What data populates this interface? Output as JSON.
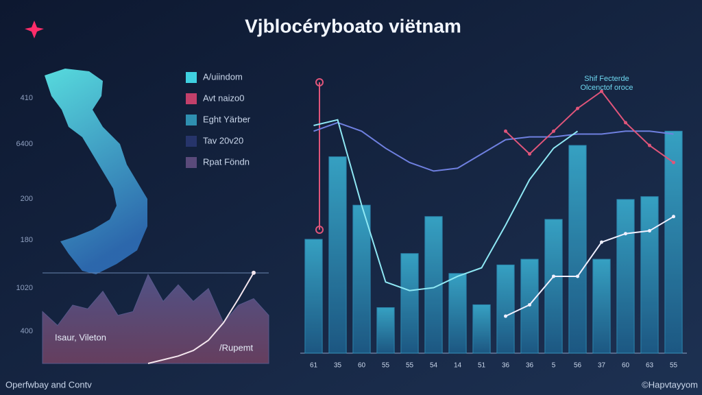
{
  "header": {
    "title": "Vjblocéryboato viëtnam"
  },
  "legend": [
    {
      "label": "A/uiindom",
      "color": "#3fd0e0"
    },
    {
      "label": "Avt naizo0",
      "color": "#c2406a"
    },
    {
      "label": "Eght Yärber",
      "color": "#2f8fb0"
    },
    {
      "label": "Tav 20v20",
      "color": "#26346a"
    },
    {
      "label": "Rpat Föndn",
      "color": "#5a4a7a"
    }
  ],
  "side_axis": [
    "410",
    "6400",
    "200",
    "180",
    "1020",
    "400"
  ],
  "footer": {
    "left": "Operfwbay and Contv",
    "right": "©Hapvtayyom"
  },
  "chart_data": [
    {
      "type": "area",
      "xlim": [
        0,
        15
      ],
      "ylim": [
        0,
        100
      ],
      "x": [
        0,
        1,
        2,
        3,
        4,
        5,
        6,
        7,
        8,
        9,
        10,
        11,
        12,
        13,
        14,
        15
      ],
      "labels": [
        "Isaur, Vileton",
        "/Rupemt"
      ],
      "series": [
        {
          "color": "#5a5b8f",
          "values": [
            56,
            41,
            63,
            59,
            78,
            52,
            56,
            96,
            67,
            85,
            67,
            81,
            44,
            63,
            70,
            52
          ]
        },
        {
          "type": "line",
          "color": "#f4e6ee",
          "values": [
            null,
            null,
            null,
            null,
            null,
            null,
            null,
            0,
            4,
            8,
            14,
            25,
            44,
            70,
            98,
            null
          ]
        }
      ]
    },
    {
      "type": "bar",
      "ylim": [
        0,
        100
      ],
      "categories": [
        "61",
        "35",
        "60",
        "55",
        "55",
        "54",
        "14",
        "51",
        "36",
        "36",
        "5",
        "56",
        "37",
        "60",
        "63",
        "55"
      ],
      "annotation": [
        "Shif Fecterde",
        "Olcenctof oroce"
      ],
      "series": [
        {
          "type": "bar",
          "color": "#2d8fb8",
          "values": [
            40,
            69,
            52,
            16,
            35,
            48,
            28,
            17,
            31,
            33,
            47,
            73,
            33,
            54,
            55,
            78
          ]
        },
        {
          "type": "line",
          "color": "#6f80e0",
          "values": [
            78,
            81,
            78,
            72,
            67,
            64,
            65,
            70,
            75,
            76,
            76,
            77,
            77,
            78,
            78,
            77
          ]
        },
        {
          "type": "line",
          "color": "#8fe8f4",
          "values": [
            80,
            82,
            52,
            25,
            22,
            23,
            27,
            30,
            45,
            61,
            72,
            78,
            null,
            null,
            null,
            null
          ]
        },
        {
          "type": "line",
          "color": "#e0557a",
          "values": [
            null,
            null,
            null,
            null,
            null,
            null,
            null,
            null,
            78,
            70,
            78,
            86,
            92,
            81,
            73,
            67
          ]
        },
        {
          "type": "line",
          "color": "#f0f0ff",
          "values": [
            null,
            null,
            null,
            null,
            null,
            null,
            null,
            null,
            13,
            17,
            27,
            27,
            39,
            42,
            43,
            48
          ]
        }
      ]
    }
  ]
}
